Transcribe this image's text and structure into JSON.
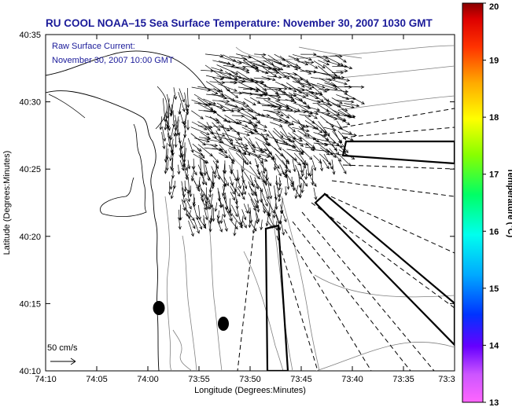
{
  "title": "RU COOL  NOAA–15  Sea Surface Temperature:  November 30, 2007 1030 GMT",
  "annotation": {
    "line1": "Raw Surface Current:",
    "line2": "November 30, 2007 10:00 GMT"
  },
  "scale_label": "50 cm/s",
  "xlabel": "Longitude (Degrees:Minutes)",
  "ylabel": "Latitude (Degrees:Minutes)",
  "x_ticks": [
    "74:10",
    "74:05",
    "74:00",
    "73:55",
    "73:50",
    "73:45",
    "73:40",
    "73:35",
    "73:3"
  ],
  "y_ticks": [
    "40:35",
    "40:30",
    "40:25",
    "40:20",
    "40:15",
    "40:10"
  ],
  "colorbar": {
    "label": "Temperature (°C)",
    "ticks": [
      "20",
      "19",
      "18",
      "17",
      "16",
      "15",
      "14",
      "13"
    ],
    "range": [
      13,
      20
    ]
  },
  "colors": {
    "title": "#1a1a99",
    "land": "#ffffff",
    "contour": "#808080",
    "vector": "#000000"
  }
}
